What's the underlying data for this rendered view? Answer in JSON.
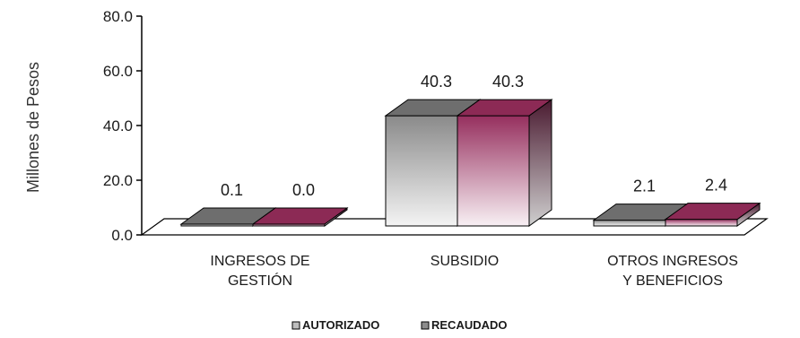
{
  "chart_data": {
    "type": "bar",
    "ylabel": "Millones de Pesos",
    "ylim": [
      0,
      80
    ],
    "yticks": [
      "0.0",
      "20.0",
      "40.0",
      "60.0",
      "80.0"
    ],
    "categories": [
      [
        "INGRESOS DE",
        "GESTIÓN"
      ],
      [
        "SUBSIDIO"
      ],
      [
        "OTROS INGRESOS",
        "Y BENEFICIOS"
      ]
    ],
    "series": [
      {
        "name": "AUTORIZADO",
        "values": [
          0.1,
          40.3,
          2.1
        ],
        "labels": [
          "0.1",
          "40.3",
          "2.1"
        ],
        "color": "#7a7a7a"
      },
      {
        "name": "RECAUDADO",
        "values": [
          0.0,
          40.3,
          2.4
        ],
        "labels": [
          "0.0",
          "40.3",
          "2.4"
        ],
        "color": "#8c2a55"
      }
    ],
    "legend_position": "bottom",
    "grid": false
  }
}
